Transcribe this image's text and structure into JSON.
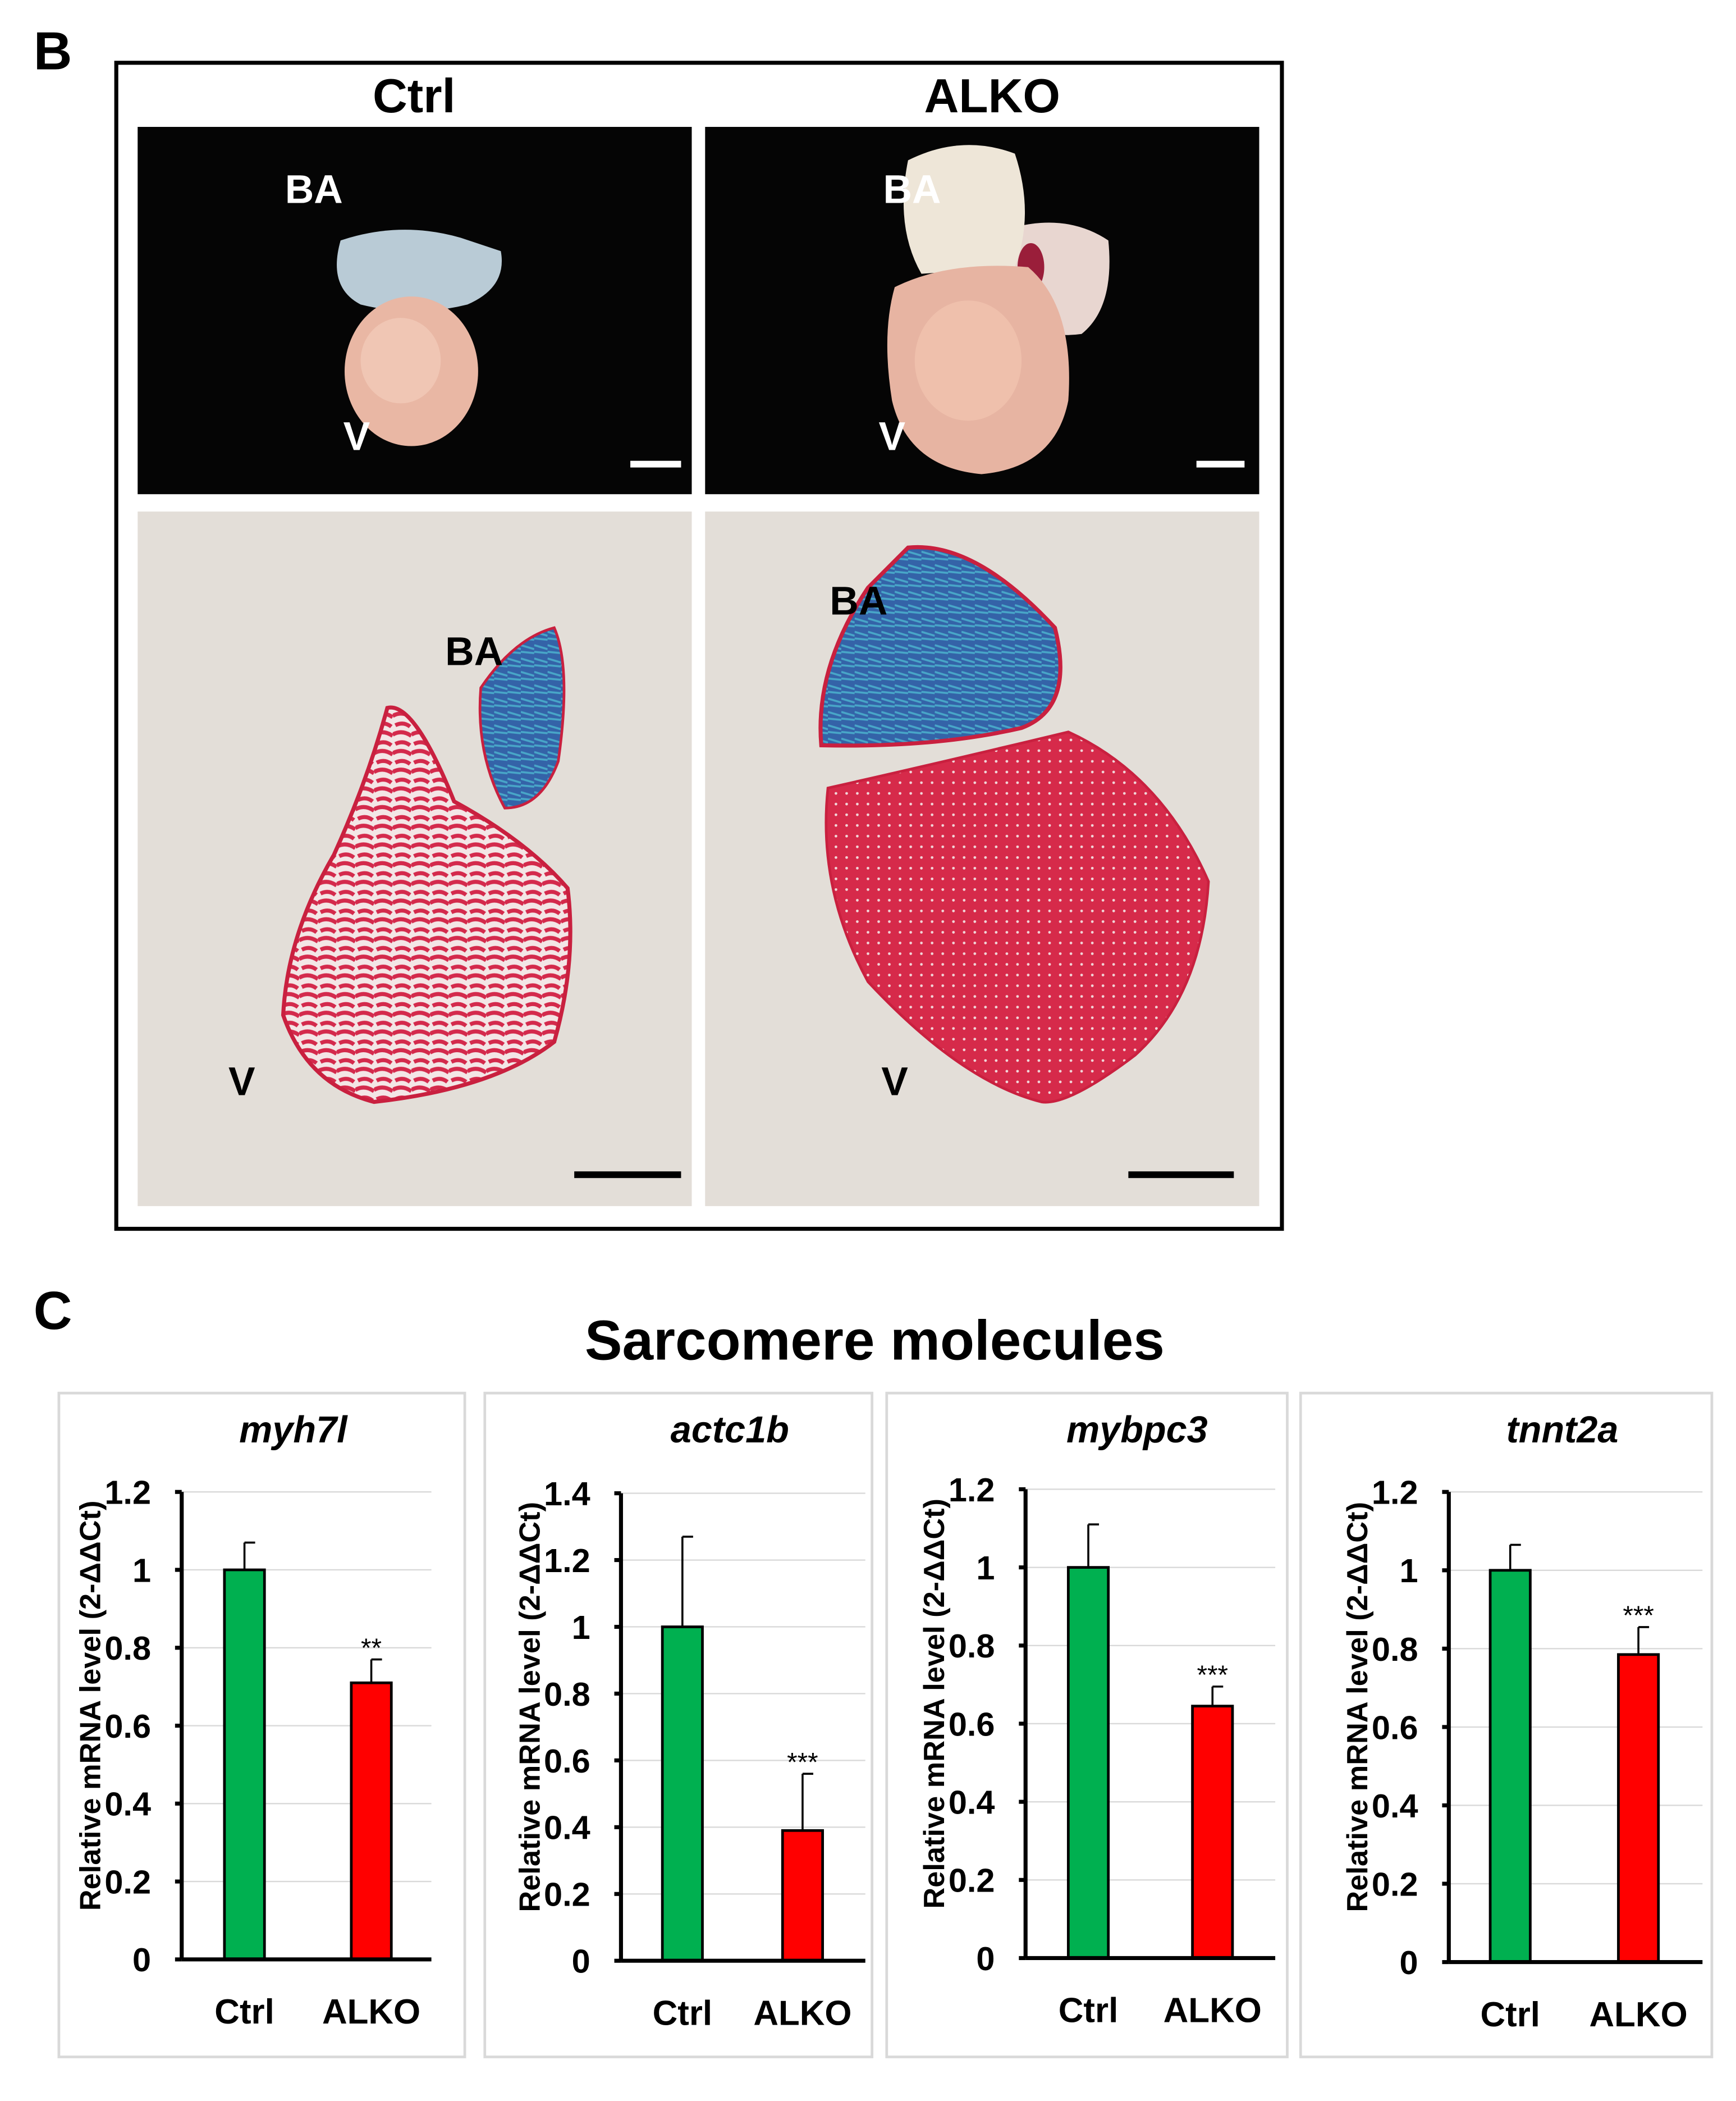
{
  "panel_b": {
    "label": "B",
    "col_ctrl": "Ctrl",
    "col_alko": "ALKO",
    "photo_ctrl": {
      "ba": "BA",
      "v": "V"
    },
    "photo_alko": {
      "ba": "BA",
      "v": "V"
    },
    "section_ctrl": {
      "ba": "BA",
      "v": "V"
    },
    "section_alko": {
      "ba": "BA",
      "v": "V"
    }
  },
  "panel_c": {
    "label": "C",
    "title": "Sarcomere molecules"
  },
  "colors": {
    "ctrl": "#00b050",
    "alko": "#ff0000"
  },
  "chart_data": [
    {
      "type": "bar",
      "title": "myh7l",
      "ylabel": "Relative mRNA level (2-ΔΔCt)",
      "categories": [
        "Ctrl",
        "ALKO"
      ],
      "values": [
        1.0,
        0.71
      ],
      "errors": [
        0.07,
        0.06
      ],
      "significance": [
        "",
        "**"
      ],
      "ylim": [
        0,
        1.2
      ],
      "yticks": [
        "0",
        "0.2",
        "0.4",
        "0.6",
        "0.8",
        "1",
        "1.2"
      ],
      "grid": true
    },
    {
      "type": "bar",
      "title": "actc1b",
      "ylabel": "Relative mRNA level (2-ΔΔCt)",
      "categories": [
        "Ctrl",
        "ALKO"
      ],
      "values": [
        1.0,
        0.39
      ],
      "errors": [
        0.27,
        0.17
      ],
      "significance": [
        "",
        "***"
      ],
      "ylim": [
        0,
        1.4
      ],
      "yticks": [
        "0",
        "0.2",
        "0.4",
        "0.6",
        "0.8",
        "1",
        "1.2",
        "1.4"
      ],
      "grid": true
    },
    {
      "type": "bar",
      "title": "mybpc3",
      "ylabel": "Relative mRNA level (2-ΔΔCt)",
      "categories": [
        "Ctrl",
        "ALKO"
      ],
      "values": [
        1.0,
        0.645
      ],
      "errors": [
        0.11,
        0.05
      ],
      "significance": [
        "",
        "***"
      ],
      "ylim": [
        0,
        1.2
      ],
      "yticks": [
        "0",
        "0.2",
        "0.4",
        "0.6",
        "0.8",
        "1",
        "1.2"
      ],
      "grid": true
    },
    {
      "type": "bar",
      "title": "tnnt2a",
      "ylabel": "Relative mRNA level (2-ΔΔCt)",
      "categories": [
        "Ctrl",
        "ALKO"
      ],
      "values": [
        1.0,
        0.785
      ],
      "errors": [
        0.065,
        0.07
      ],
      "significance": [
        "",
        "***"
      ],
      "ylim": [
        0,
        1.2
      ],
      "yticks": [
        "0",
        "0.2",
        "0.4",
        "0.6",
        "0.8",
        "1",
        "1.2"
      ],
      "grid": true
    }
  ]
}
